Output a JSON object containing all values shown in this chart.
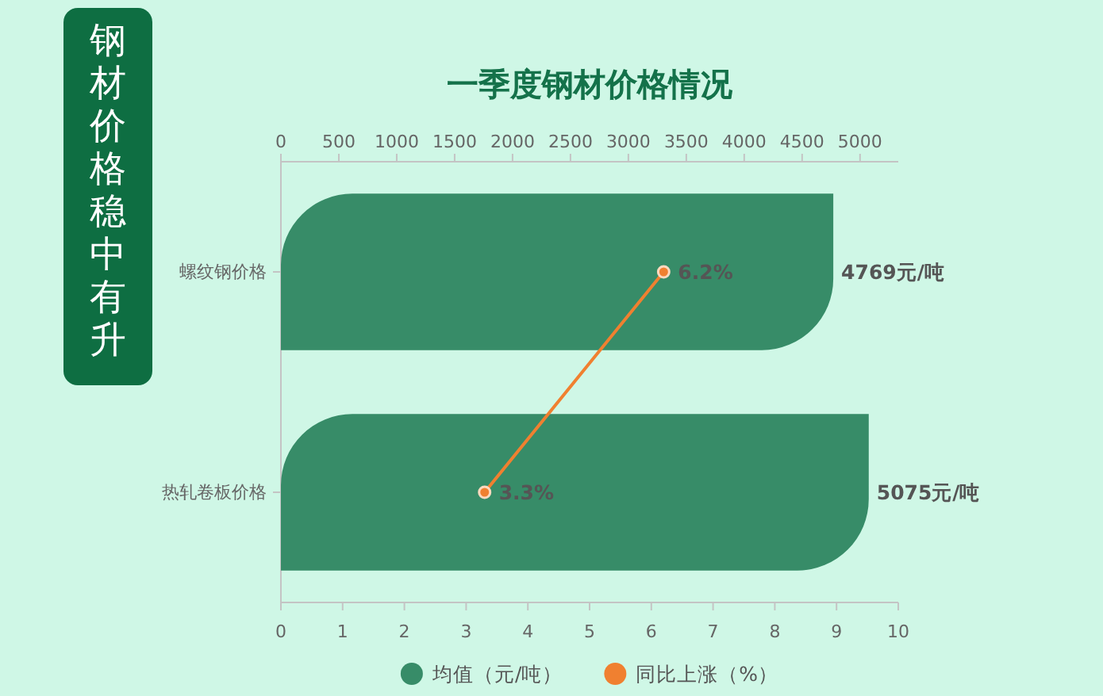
{
  "chart_data": {
    "type": "bar",
    "orientation": "horizontal",
    "title": "一季度钢材价格情况",
    "annotations": [
      "钢材价格稳中有升"
    ],
    "categories": [
      "螺纹钢价格",
      "热轧卷板价格"
    ],
    "series": [
      {
        "name": "均值（元/吨）",
        "color": "#378c68",
        "values": [
          4769,
          5075
        ],
        "axis": "x2",
        "value_labels": [
          "4769元/吨",
          "5075元/吨"
        ]
      },
      {
        "name": "同比上涨（%）",
        "type": "line",
        "color": "#f08030",
        "marker": "circle",
        "values": [
          6.2,
          3.3
        ],
        "value_labels": [
          "6.2%",
          "3.3%"
        ]
      }
    ],
    "xlim": [
      0,
      10
    ],
    "xticks": [
      0,
      1,
      2,
      3,
      4,
      5,
      6,
      7,
      8,
      9,
      10
    ],
    "x2lim": [
      0,
      5330
    ],
    "x2ticks": [
      0,
      500,
      1000,
      1500,
      2000,
      2500,
      3000,
      3500,
      4000,
      4500,
      5000
    ],
    "legend": "bottom"
  }
}
